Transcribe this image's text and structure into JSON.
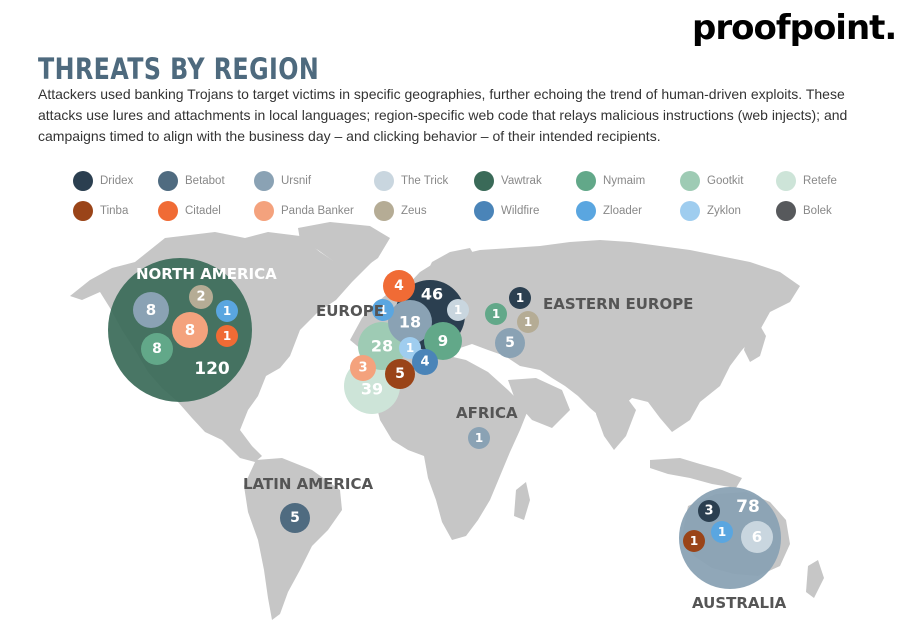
{
  "logo": "proofpoint.",
  "title": "THREATS BY REGION",
  "description": "Attackers used banking Trojans to target victims in specific geographies, further echoing the trend of human-driven exploits. These attacks use lures and attachments in local languages; region-specific web code that relays malicious instructions (web injects); and campaigns timed to align with the business day – and clicking behavior – of their intended recipients.",
  "legend": [
    {
      "name": "Dridex",
      "color": "#2b3f50"
    },
    {
      "name": "Betabot",
      "color": "#4f6b80"
    },
    {
      "name": "Ursnif",
      "color": "#8aa2b4"
    },
    {
      "name": "The Trick",
      "color": "#c9d6df"
    },
    {
      "name": "Vawtrak",
      "color": "#3a6a58"
    },
    {
      "name": "Nymaim",
      "color": "#62a889"
    },
    {
      "name": "Gootkit",
      "color": "#9ecbb4"
    },
    {
      "name": "Retefe",
      "color": "#cde4d8"
    },
    {
      "name": "Tinba",
      "color": "#9a4418"
    },
    {
      "name": "Citadel",
      "color": "#f06b35"
    },
    {
      "name": "Panda Banker",
      "color": "#f4a27d"
    },
    {
      "name": "Zeus",
      "color": "#b5ac95"
    },
    {
      "name": "Wildfire",
      "color": "#4a84b8"
    },
    {
      "name": "Zloader",
      "color": "#5aa6e0"
    },
    {
      "name": "Zyklon",
      "color": "#9fcdef"
    },
    {
      "name": "Bolek",
      "color": "#57595c"
    }
  ],
  "regions": [
    {
      "name": "NORTH AMERICA",
      "bubbles": [
        {
          "value": "120",
          "color": "#3a6a58"
        },
        {
          "value": "8",
          "color": "#8aa2b4"
        },
        {
          "value": "2",
          "color": "#b5ac95"
        },
        {
          "value": "1",
          "color": "#5aa6e0"
        },
        {
          "value": "8",
          "color": "#f4a27d"
        },
        {
          "value": "1",
          "color": "#f06b35"
        },
        {
          "value": "8",
          "color": "#62a889"
        }
      ]
    },
    {
      "name": "EUROPE",
      "bubbles": [
        {
          "value": "4",
          "color": "#f06b35"
        },
        {
          "value": "46",
          "color": "#2b3f50"
        },
        {
          "value": "1",
          "color": "#5aa6e0"
        },
        {
          "value": "1",
          "color": "#c9d6df"
        },
        {
          "value": "18",
          "color": "#8aa2b4"
        },
        {
          "value": "28",
          "color": "#9ecbb4"
        },
        {
          "value": "1",
          "color": "#9fcdef"
        },
        {
          "value": "9",
          "color": "#62a889"
        },
        {
          "value": "3",
          "color": "#f4a27d"
        },
        {
          "value": "4",
          "color": "#4a84b8"
        },
        {
          "value": "5",
          "color": "#9a4418"
        },
        {
          "value": "39",
          "color": "#cde4d8"
        }
      ]
    },
    {
      "name": "EASTERN EUROPE",
      "bubbles": [
        {
          "value": "1",
          "color": "#2b3f50"
        },
        {
          "value": "1",
          "color": "#62a889"
        },
        {
          "value": "1",
          "color": "#b5ac95"
        },
        {
          "value": "5",
          "color": "#8aa2b4"
        }
      ]
    },
    {
      "name": "AFRICA",
      "bubbles": [
        {
          "value": "1",
          "color": "#8aa2b4"
        }
      ]
    },
    {
      "name": "LATIN AMERICA",
      "bubbles": [
        {
          "value": "5",
          "color": "#4f6b80"
        }
      ]
    },
    {
      "name": "AUSTRALIA",
      "bubbles": [
        {
          "value": "3",
          "color": "#2b3f50"
        },
        {
          "value": "78",
          "color": "#8aa2b4"
        },
        {
          "value": "1",
          "color": "#5aa6e0"
        },
        {
          "value": "1",
          "color": "#9a4418"
        },
        {
          "value": "6",
          "color": "#c9d6df"
        }
      ]
    }
  ]
}
